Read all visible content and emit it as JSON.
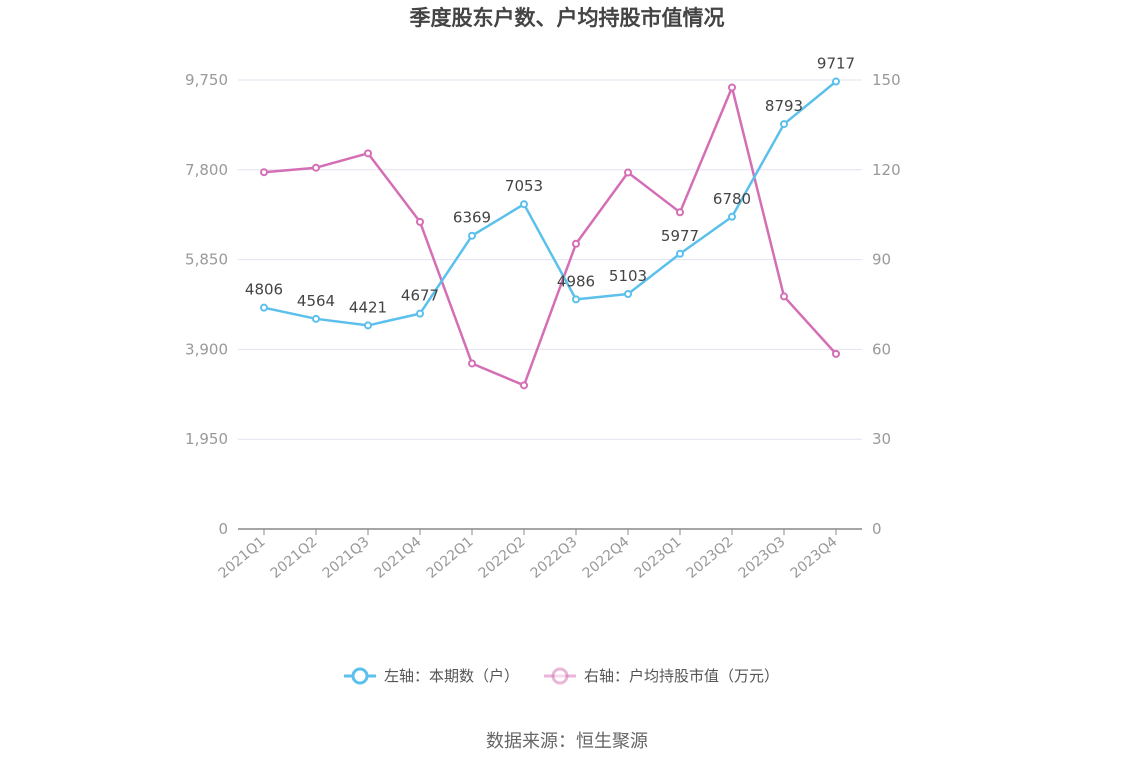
{
  "chart_data": {
    "type": "line",
    "title": "季度股东户数、户均持股市值情况",
    "categories": [
      "2021Q1",
      "2021Q2",
      "2021Q3",
      "2021Q4",
      "2022Q1",
      "2022Q2",
      "2022Q3",
      "2022Q4",
      "2023Q1",
      "2023Q2",
      "2023Q3",
      "2023Q4"
    ],
    "y_left": {
      "ticks": [
        "0",
        "1,950",
        "3,900",
        "5,850",
        "7,800",
        "9,750"
      ],
      "ylim": [
        0,
        9750
      ]
    },
    "y_right": {
      "ticks": [
        "0",
        "30",
        "60",
        "90",
        "120",
        "150"
      ],
      "ylim": [
        0,
        150
      ]
    },
    "series": [
      {
        "name": "左轴：本期数（户）",
        "axis": "left",
        "color": "#5bc0eb",
        "values": [
          4806,
          4564,
          4421,
          4677,
          6369,
          7053,
          4986,
          5103,
          5977,
          6780,
          8793,
          9717
        ],
        "labels": [
          "4806",
          "4564",
          "4421",
          "4677",
          "6369",
          "7053",
          "4986",
          "5103",
          "5977",
          "6780",
          "8793",
          "9717"
        ]
      },
      {
        "name": "右轴：户均持股市值（万元）",
        "axis": "right",
        "color": "#d46fb5",
        "values": [
          119.2,
          120.7,
          125.5,
          102.6,
          55.3,
          48.0,
          95.3,
          119.1,
          105.8,
          147.5,
          77.7,
          58.5
        ]
      }
    ],
    "grid": true,
    "legend_position": "bottom"
  },
  "source": "数据来源：恒生聚源"
}
